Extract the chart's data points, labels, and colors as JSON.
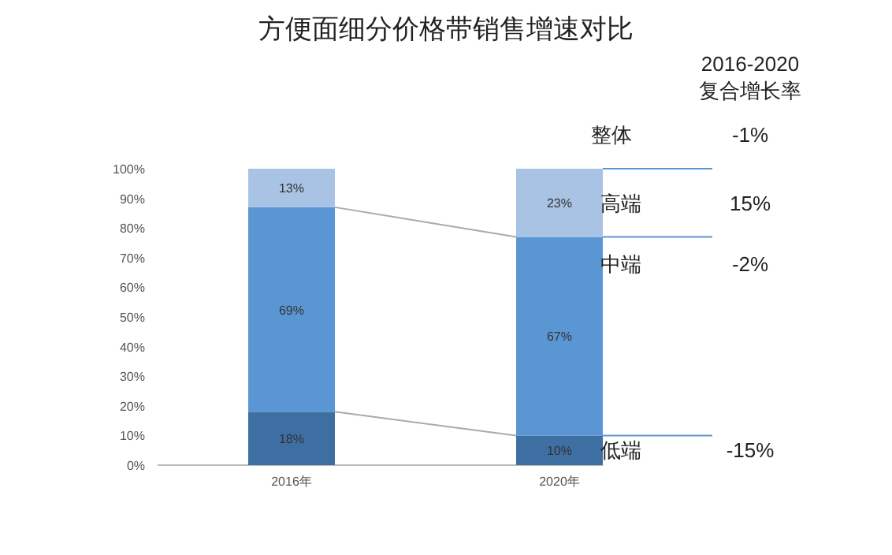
{
  "chart_data": {
    "type": "bar",
    "stacked": true,
    "title": "方便面细分价格带销售增速对比",
    "categories": [
      "2016年",
      "2020年"
    ],
    "series": [
      {
        "name": "低端",
        "color": "#3e6fa3",
        "values": [
          18,
          10
        ],
        "value_labels": [
          "18%",
          "10%"
        ]
      },
      {
        "name": "中端",
        "color": "#5b96d4",
        "values": [
          69,
          67
        ],
        "value_labels": [
          "69%",
          "67%"
        ]
      },
      {
        "name": "高端",
        "color": "#a9c3e4",
        "values": [
          13,
          23
        ],
        "value_labels": [
          "13%",
          "23%"
        ]
      }
    ],
    "ylim": [
      0,
      100
    ],
    "yticks": [
      {
        "value": 0,
        "label": "0%"
      },
      {
        "value": 10,
        "label": "10%"
      },
      {
        "value": 20,
        "label": "20%"
      },
      {
        "value": 30,
        "label": "30%"
      },
      {
        "value": 40,
        "label": "40%"
      },
      {
        "value": 50,
        "label": "50%"
      },
      {
        "value": 60,
        "label": "60%"
      },
      {
        "value": 70,
        "label": "70%"
      },
      {
        "value": 80,
        "label": "80%"
      },
      {
        "value": 90,
        "label": "90%"
      },
      {
        "value": 100,
        "label": "100%"
      }
    ],
    "annotations": [
      "2016-2020",
      "复合增长率",
      "整体",
      "-1%",
      "-15%",
      "-2%",
      "15%"
    ],
    "grid": false
  }
}
